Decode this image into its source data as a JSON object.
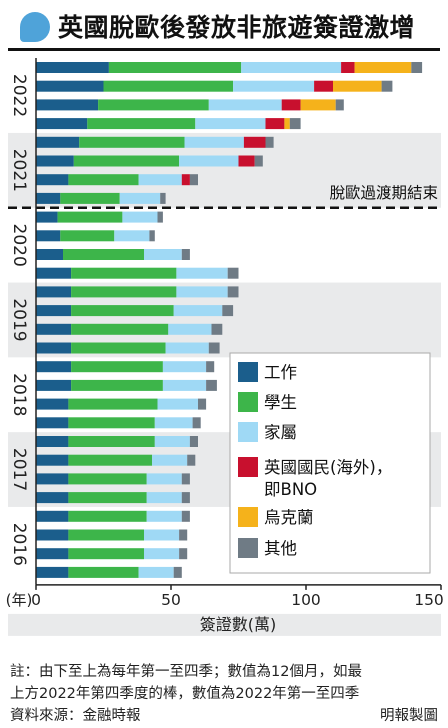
{
  "header": {
    "title": "英國脫歐後發放非旅遊簽證激增",
    "accent_color": "#4fa3d9"
  },
  "chart_data": {
    "type": "bar",
    "orientation": "horizontal",
    "stacked": true,
    "categories": [
      "2016-Q1",
      "2016-Q2",
      "2016-Q3",
      "2016-Q4",
      "2017-Q1",
      "2017-Q2",
      "2017-Q3",
      "2017-Q4",
      "2018-Q1",
      "2018-Q2",
      "2018-Q3",
      "2018-Q4",
      "2019-Q1",
      "2019-Q2",
      "2019-Q3",
      "2019-Q4",
      "2020-Q1",
      "2020-Q2",
      "2020-Q3",
      "2020-Q4",
      "2021-Q1",
      "2021-Q2",
      "2021-Q3",
      "2021-Q4",
      "2022-Q1",
      "2022-Q2",
      "2022-Q3",
      "2022-Q4"
    ],
    "year_labels": [
      "2016",
      "2017",
      "2018",
      "2019",
      "2020",
      "2021",
      "2022"
    ],
    "series": [
      {
        "name": "工作",
        "color": "#1b5e8c",
        "values": [
          12,
          12,
          12,
          12,
          12,
          12,
          12,
          12,
          12,
          12,
          13,
          13,
          13,
          13,
          13,
          13,
          13,
          10,
          9,
          8,
          9,
          12,
          14,
          16,
          19,
          23,
          25,
          27
        ]
      },
      {
        "name": "學生",
        "color": "#3db54a",
        "values": [
          26,
          28,
          28,
          29,
          29,
          29,
          31,
          32,
          32,
          33,
          34,
          34,
          35,
          36,
          38,
          39,
          39,
          30,
          20,
          24,
          22,
          26,
          39,
          39,
          40,
          41,
          48,
          49
        ]
      },
      {
        "name": "家屬",
        "color": "#9fd9f5",
        "values": [
          13,
          13,
          13,
          13,
          13,
          13,
          13,
          13,
          14,
          15,
          16,
          16,
          16,
          16,
          18,
          19,
          19,
          14,
          13,
          13,
          15,
          16,
          22,
          22,
          26,
          27,
          30,
          37
        ]
      },
      {
        "name": "英國國民(海外)，即BNO",
        "color": "#c8102e",
        "values": [
          0,
          0,
          0,
          0,
          0,
          0,
          0,
          0,
          0,
          0,
          0,
          0,
          0,
          0,
          0,
          0,
          0,
          0,
          0,
          0,
          0,
          3,
          6,
          8,
          7,
          7,
          7,
          5
        ]
      },
      {
        "name": "烏克蘭",
        "color": "#f5b21b",
        "values": [
          0,
          0,
          0,
          0,
          0,
          0,
          0,
          0,
          0,
          0,
          0,
          0,
          0,
          0,
          0,
          0,
          0,
          0,
          0,
          0,
          0,
          0,
          0,
          0,
          2,
          13,
          18,
          21
        ]
      },
      {
        "name": "其他",
        "color": "#6f7b85",
        "values": [
          3,
          3,
          3,
          3,
          3,
          3,
          3,
          3,
          3,
          3,
          4,
          3,
          4,
          4,
          4,
          4,
          4,
          3,
          2,
          2,
          2,
          3,
          3,
          3,
          4,
          3,
          4,
          4
        ]
      }
    ],
    "xlabel": "簽證數(萬)",
    "ylabel": "(年)",
    "xlim": [
      0,
      150
    ],
    "xticks": [
      0,
      50,
      100,
      150
    ],
    "annotation": "脫歐過渡期結束",
    "legend_position": "right"
  },
  "notes": {
    "line1": "註：由下至上為每年第一至四季；數值為12個月，如最",
    "line2": "上方2022年第四季度的棒，數值為2022年第一至四季",
    "source": "資料來源：金融時報",
    "credit": "明報製圖"
  }
}
